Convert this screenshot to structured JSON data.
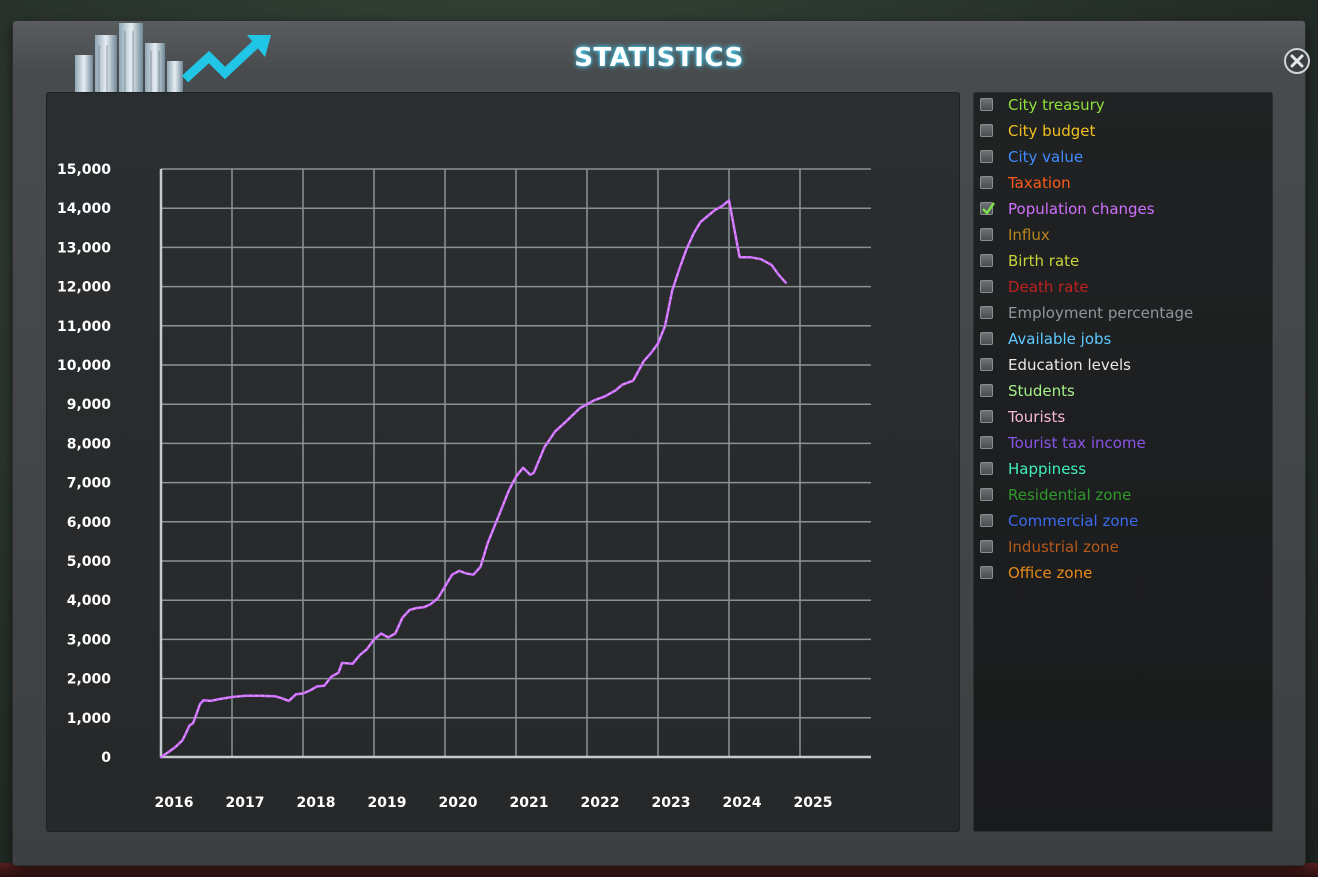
{
  "window": {
    "title": "STATISTICS"
  },
  "icons": {
    "close": "close-icon",
    "logo": "city-statistics-logo-icon",
    "checkmark": "checkmark-icon"
  },
  "legend": {
    "items": [
      {
        "label": "City treasury",
        "color": "#8fe23a",
        "checked": false
      },
      {
        "label": "City budget",
        "color": "#f0c020",
        "checked": false
      },
      {
        "label": "City value",
        "color": "#3f8cff",
        "checked": false
      },
      {
        "label": "Taxation",
        "color": "#ff5a1a",
        "checked": false
      },
      {
        "label": "Population changes",
        "color": "#d070ff",
        "checked": true
      },
      {
        "label": "Influx",
        "color": "#b8861f",
        "checked": false
      },
      {
        "label": "Birth rate",
        "color": "#c8d23a",
        "checked": false
      },
      {
        "label": "Death rate",
        "color": "#c02020",
        "checked": false
      },
      {
        "label": "Employment percentage",
        "color": "#8e979c",
        "checked": false
      },
      {
        "label": "Available jobs",
        "color": "#5cc8ff",
        "checked": false
      },
      {
        "label": "Education levels",
        "color": "#e8e8e8",
        "checked": false
      },
      {
        "label": "Students",
        "color": "#a6f08a",
        "checked": false
      },
      {
        "label": "Tourists",
        "color": "#f7b8d6",
        "checked": false
      },
      {
        "label": "Tourist tax income",
        "color": "#8a55e6",
        "checked": false
      },
      {
        "label": "Happiness",
        "color": "#3ef0c0",
        "checked": false
      },
      {
        "label": "Residential zone",
        "color": "#2f9a2a",
        "checked": false
      },
      {
        "label": "Commercial zone",
        "color": "#3a6cf0",
        "checked": false
      },
      {
        "label": "Industrial zone",
        "color": "#b5581a",
        "checked": false
      },
      {
        "label": "Office zone",
        "color": "#e88a1a",
        "checked": false
      }
    ]
  },
  "chart_data": {
    "type": "line",
    "x_tick_labels": [
      "2016",
      "2017",
      "2018",
      "2019",
      "2020",
      "2021",
      "2022",
      "2023",
      "2024",
      "2025"
    ],
    "x_range": [
      2015.2,
      2025.2
    ],
    "y_tick_labels": [
      "0",
      "1,000",
      "2,000",
      "3,000",
      "4,000",
      "5,000",
      "6,000",
      "7,000",
      "8,000",
      "9,000",
      "10,000",
      "11,000",
      "12,000",
      "13,000",
      "14,000",
      "15,000"
    ],
    "ylim": [
      0,
      15000
    ],
    "grid": true,
    "series": [
      {
        "color": "#d070ff",
        "points": [
          [
            2015.2,
            0
          ],
          [
            2015.3,
            120
          ],
          [
            2015.4,
            250
          ],
          [
            2015.5,
            420
          ],
          [
            2015.55,
            600
          ],
          [
            2015.6,
            800
          ],
          [
            2015.65,
            860
          ],
          [
            2015.7,
            1100
          ],
          [
            2015.75,
            1350
          ],
          [
            2015.8,
            1450
          ],
          [
            2015.9,
            1430
          ],
          [
            2016.0,
            1470
          ],
          [
            2016.2,
            1530
          ],
          [
            2016.4,
            1560
          ],
          [
            2016.6,
            1565
          ],
          [
            2016.8,
            1550
          ],
          [
            2016.9,
            1500
          ],
          [
            2017.0,
            1430
          ],
          [
            2017.1,
            1600
          ],
          [
            2017.2,
            1620
          ],
          [
            2017.3,
            1700
          ],
          [
            2017.4,
            1800
          ],
          [
            2017.5,
            1820
          ],
          [
            2017.6,
            2050
          ],
          [
            2017.7,
            2150
          ],
          [
            2017.75,
            2400
          ],
          [
            2017.9,
            2380
          ],
          [
            2018.0,
            2600
          ],
          [
            2018.1,
            2750
          ],
          [
            2018.2,
            3000
          ],
          [
            2018.3,
            3150
          ],
          [
            2018.4,
            3050
          ],
          [
            2018.5,
            3150
          ],
          [
            2018.6,
            3550
          ],
          [
            2018.7,
            3750
          ],
          [
            2018.8,
            3800
          ],
          [
            2018.9,
            3820
          ],
          [
            2019.0,
            3900
          ],
          [
            2019.1,
            4050
          ],
          [
            2019.2,
            4350
          ],
          [
            2019.3,
            4650
          ],
          [
            2019.4,
            4750
          ],
          [
            2019.5,
            4680
          ],
          [
            2019.6,
            4650
          ],
          [
            2019.7,
            4850
          ],
          [
            2019.8,
            5450
          ],
          [
            2019.9,
            5900
          ],
          [
            2020.0,
            6350
          ],
          [
            2020.1,
            6800
          ],
          [
            2020.2,
            7150
          ],
          [
            2020.3,
            7380
          ],
          [
            2020.4,
            7200
          ],
          [
            2020.45,
            7250
          ],
          [
            2020.6,
            7900
          ],
          [
            2020.75,
            8300
          ],
          [
            2020.9,
            8550
          ],
          [
            2021.1,
            8900
          ],
          [
            2021.3,
            9100
          ],
          [
            2021.45,
            9200
          ],
          [
            2021.6,
            9350
          ],
          [
            2021.7,
            9500
          ],
          [
            2021.85,
            9600
          ],
          [
            2022.0,
            10100
          ],
          [
            2022.1,
            10300
          ],
          [
            2022.2,
            10550
          ],
          [
            2022.3,
            11000
          ],
          [
            2022.4,
            11900
          ],
          [
            2022.5,
            12450
          ],
          [
            2022.6,
            12950
          ],
          [
            2022.7,
            13350
          ],
          [
            2022.8,
            13650
          ],
          [
            2022.9,
            13800
          ],
          [
            2023.0,
            13950
          ],
          [
            2023.1,
            14050
          ],
          [
            2023.2,
            14200
          ],
          [
            2023.35,
            12750
          ],
          [
            2023.5,
            12750
          ],
          [
            2023.65,
            12700
          ],
          [
            2023.8,
            12550
          ],
          [
            2023.9,
            12300
          ],
          [
            2024.0,
            12100
          ]
        ]
      }
    ]
  }
}
